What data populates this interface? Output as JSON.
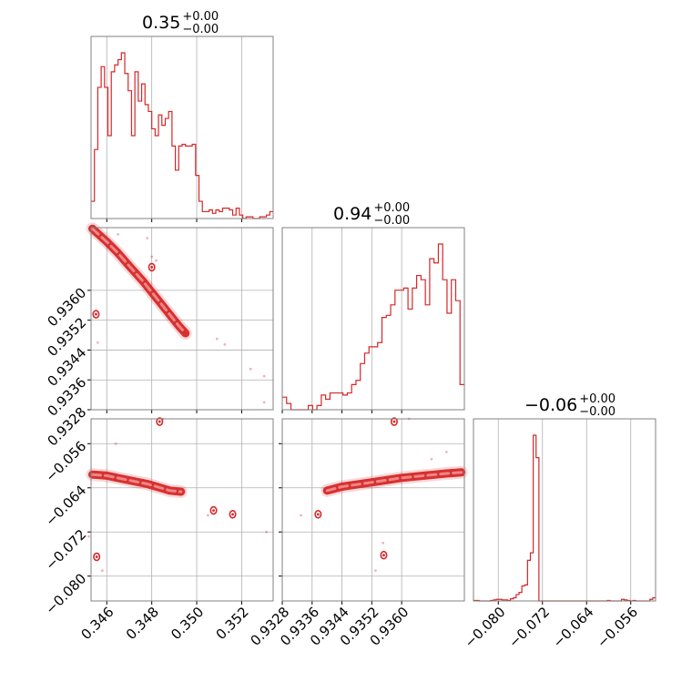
{
  "chart_data": {
    "type": "corner",
    "color": "#d62728",
    "grid": true,
    "parameters": [
      {
        "title": {
          "median": "0.35",
          "upper": "+0.00",
          "lower": "−0.00"
        },
        "range": [
          0.3453,
          0.3534
        ],
        "ticks": [
          0.346,
          0.348,
          0.35,
          0.352
        ],
        "tick_labels": [
          "0.346",
          "0.348",
          "0.350",
          "0.352"
        ],
        "histogram": {
          "bins_start": 0.3453,
          "bins_end": 0.3534,
          "counts": [
            10,
            40,
            76,
            88,
            76,
            48,
            85,
            89,
            92,
            96,
            84,
            74,
            48,
            85,
            68,
            78,
            66,
            62,
            52,
            48,
            60,
            54,
            58,
            62,
            42,
            28,
            42,
            43,
            42,
            42,
            43,
            25,
            10,
            4,
            4,
            5,
            3,
            5,
            4,
            6,
            6,
            5,
            2,
            6,
            2,
            0,
            1,
            1,
            0,
            0,
            1,
            1,
            2,
            4
          ]
        }
      },
      {
        "title": {
          "median": "0.94",
          "upper": "+0.00",
          "lower": "−0.00"
        },
        "range": [
          0.9328,
          0.93768
        ],
        "ticks": [
          0.9328,
          0.9336,
          0.9344,
          0.9352,
          0.936
        ],
        "tick_labels": [
          "0.9328",
          "0.9336",
          "0.9344",
          "0.9352",
          "0.9360"
        ],
        "histogram": {
          "bins_start": 0.9328,
          "bins_end": 0.93768,
          "counts": [
            6,
            3,
            0,
            0,
            0,
            0,
            2,
            0,
            2,
            7,
            5,
            8,
            8,
            8,
            7,
            8,
            12,
            14,
            22,
            27,
            30,
            30,
            32,
            44,
            45,
            50,
            57,
            57,
            58,
            48,
            58,
            64,
            62,
            50,
            72,
            70,
            79,
            62,
            46,
            62,
            52,
            12
          ]
        }
      },
      {
        "title": {
          "median": "−0.06",
          "upper": "+0.00",
          "lower": "−0.00"
        },
        "range": [
          -0.0845,
          -0.0515
        ],
        "ticks": [
          -0.08,
          -0.072,
          -0.064,
          -0.056
        ],
        "tick_labels": [
          "−0.080",
          "−0.072",
          "−0.064",
          "−0.056"
        ],
        "histogram": {
          "bins_start": -0.0845,
          "bins_end": -0.0515,
          "counts": [
            1,
            1,
            0,
            0,
            0,
            0,
            1,
            2,
            3,
            3,
            2,
            2,
            1,
            4,
            6,
            12,
            16,
            28,
            30,
            76,
            90,
            310,
            268,
            0,
            0,
            0,
            0,
            0,
            0,
            0,
            0,
            0,
            0,
            0,
            0,
            0,
            0,
            0,
            0,
            0,
            0,
            0,
            0,
            0,
            0,
            0,
            0,
            1,
            0,
            0,
            0,
            0,
            3,
            2,
            1,
            0,
            1,
            0,
            0,
            0,
            0,
            0,
            3,
            6
          ]
        }
      }
    ],
    "scatter": [
      {
        "row": 1,
        "col": 0,
        "ridge": [
          [
            0.34536,
            0.93765
          ],
          [
            0.3456,
            0.93752
          ],
          [
            0.346,
            0.9373
          ],
          [
            0.3465,
            0.937
          ],
          [
            0.347,
            0.93665
          ],
          [
            0.3476,
            0.93625
          ],
          [
            0.348,
            0.93595
          ],
          [
            0.3486,
            0.9355
          ],
          [
            0.3492,
            0.93505
          ],
          [
            0.3495,
            0.93485
          ]
        ],
        "blobs": [
          [
            0.34552,
            0.93536
          ],
          [
            0.348,
            0.93662
          ]
        ],
        "outliers": [
          [
            0.3509,
            0.9347
          ],
          [
            0.35125,
            0.93455
          ],
          [
            0.3524,
            0.93389
          ],
          [
            0.353,
            0.9337
          ],
          [
            0.353,
            0.933
          ],
          [
            0.3456,
            0.9346
          ],
          [
            0.348,
            0.9369
          ],
          [
            0.3482,
            0.9368
          ],
          [
            0.3478,
            0.9374
          ],
          [
            0.3465,
            0.9375
          ]
        ]
      },
      {
        "row": 2,
        "col": 0,
        "ridge": [
          [
            0.34536,
            -0.0616
          ],
          [
            0.346,
            -0.0618
          ],
          [
            0.3466,
            -0.0623
          ],
          [
            0.3472,
            -0.0628
          ],
          [
            0.3478,
            -0.0633
          ],
          [
            0.3484,
            -0.064
          ],
          [
            0.3488,
            -0.0645
          ],
          [
            0.3493,
            -0.0647
          ]
        ],
        "blobs": [
          [
            0.34555,
            -0.0765
          ],
          [
            0.34835,
            -0.052
          ],
          [
            0.35075,
            -0.0681
          ],
          [
            0.3516,
            -0.0688
          ]
        ],
        "outliers": [
          [
            0.3458,
            -0.079
          ],
          [
            0.3464,
            -0.056
          ],
          [
            0.3452,
            -0.0728
          ],
          [
            0.3531,
            -0.072
          ],
          [
            0.3505,
            -0.069
          ],
          [
            0.3485,
            -0.0515
          ]
        ]
      },
      {
        "row": 2,
        "col": 1,
        "ridge": [
          [
            0.9376,
            -0.0612
          ],
          [
            0.9372,
            -0.0614
          ],
          [
            0.9366,
            -0.0618
          ],
          [
            0.936,
            -0.0622
          ],
          [
            0.9354,
            -0.0628
          ],
          [
            0.9348,
            -0.0634
          ],
          [
            0.9344,
            -0.0638
          ],
          [
            0.934,
            -0.0645
          ]
        ],
        "blobs": [
          [
            0.93552,
            -0.0762
          ],
          [
            0.9358,
            -0.052
          ],
          [
            0.93376,
            -0.0688
          ]
        ],
        "outliers": [
          [
            0.9355,
            -0.074
          ],
          [
            0.9353,
            -0.079
          ],
          [
            0.9362,
            -0.0515
          ],
          [
            0.9333,
            -0.069
          ],
          [
            0.9372,
            -0.0575
          ],
          [
            0.9368,
            -0.0588
          ]
        ]
      }
    ]
  }
}
